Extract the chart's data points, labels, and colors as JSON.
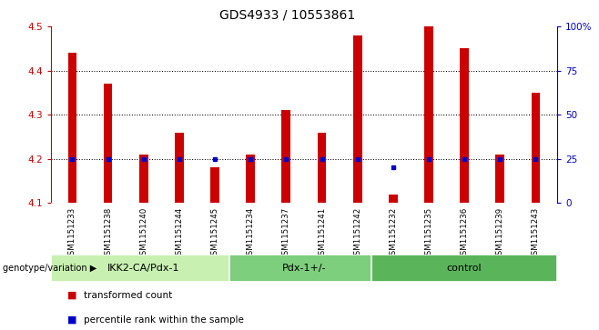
{
  "title": "GDS4933 / 10553861",
  "samples": [
    "GSM1151233",
    "GSM1151238",
    "GSM1151240",
    "GSM1151244",
    "GSM1151245",
    "GSM1151234",
    "GSM1151237",
    "GSM1151241",
    "GSM1151242",
    "GSM1151232",
    "GSM1151235",
    "GSM1151236",
    "GSM1151239",
    "GSM1151243"
  ],
  "red_values": [
    4.44,
    4.37,
    4.21,
    4.26,
    4.18,
    4.21,
    4.31,
    4.26,
    4.48,
    4.12,
    4.5,
    4.45,
    4.21,
    4.35
  ],
  "blue_pct": [
    25,
    25,
    25,
    25,
    25,
    25,
    25,
    25,
    25,
    20,
    25,
    25,
    25,
    25
  ],
  "groups": [
    {
      "label": "IKK2-CA/Pdx-1",
      "start": 0,
      "end": 5
    },
    {
      "label": "Pdx-1+/-",
      "start": 5,
      "end": 9
    },
    {
      "label": "control",
      "start": 9,
      "end": 14
    }
  ],
  "group_colors": [
    "#c8f0b0",
    "#7dce7d",
    "#5ab55a"
  ],
  "ylim_left": [
    4.1,
    4.5
  ],
  "ylim_right": [
    0,
    100
  ],
  "yticks_left": [
    4.1,
    4.2,
    4.3,
    4.4,
    4.5
  ],
  "yticks_right": [
    0,
    25,
    50,
    75,
    100
  ],
  "ytick_labels_right": [
    "0",
    "25",
    "50",
    "75",
    "100%"
  ],
  "left_color": "#cc0000",
  "right_color": "#0000cc",
  "bar_color": "#cc0000",
  "blue_marker_color": "#0000cc",
  "bg_color": "#ffffff",
  "cell_bg": "#d8d8d8",
  "bar_width": 0.25,
  "genotype_label": "genotype/variation",
  "legend_items": [
    {
      "color": "#cc0000",
      "label": "transformed count"
    },
    {
      "color": "#0000cc",
      "label": "percentile rank within the sample"
    }
  ]
}
